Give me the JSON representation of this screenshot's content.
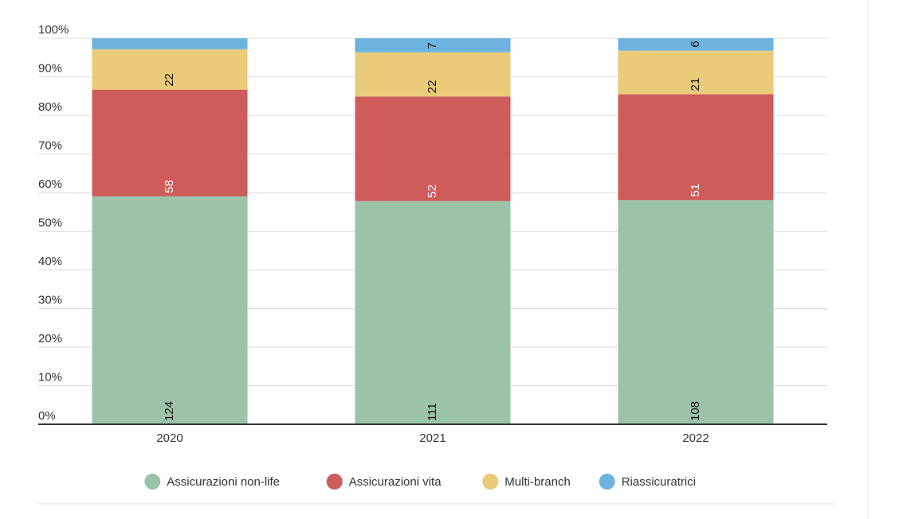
{
  "chart_data": {
    "type": "bar",
    "stack": "percent",
    "categories": [
      "2020",
      "2021",
      "2022"
    ],
    "series": [
      {
        "name": "Assicurazioni non-life",
        "color": "#9ac3a8",
        "values": [
          124,
          111,
          108
        ]
      },
      {
        "name": "Assicurazioni vita",
        "color": "#cd5c5b",
        "values": [
          58,
          52,
          51
        ]
      },
      {
        "name": "Multi-branch",
        "color": "#eacb7a",
        "values": [
          22,
          22,
          21
        ]
      },
      {
        "name": "Riassicuratrici",
        "color": "#6db3e0",
        "values": [
          6,
          7,
          6
        ],
        "value_labels": [
          null,
          "7",
          "6"
        ]
      }
    ],
    "ylim": [
      0,
      100
    ],
    "yticks": [
      {
        "value": 0,
        "label": "0%"
      },
      {
        "value": 10,
        "label": "10%"
      },
      {
        "value": 20,
        "label": "20%"
      },
      {
        "value": 30,
        "label": "30%"
      },
      {
        "value": 40,
        "label": "40%"
      },
      {
        "value": 50,
        "label": "50%"
      },
      {
        "value": 60,
        "label": "60%"
      },
      {
        "value": 70,
        "label": "70%"
      },
      {
        "value": 80,
        "label": "80%"
      },
      {
        "value": 90,
        "label": "90%"
      },
      {
        "value": 100,
        "label": "100%"
      }
    ],
    "grid": true,
    "legend": "bottom"
  }
}
